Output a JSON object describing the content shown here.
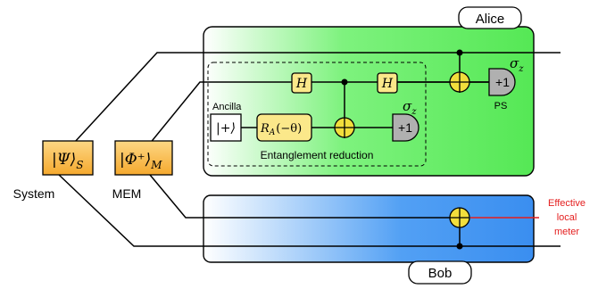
{
  "labels": {
    "alice": "Alice",
    "bob": "Bob",
    "system_state": "|Ψ⟩",
    "system_state_sub": "S",
    "system": "System",
    "mem_state": "|Φ⁺⟩",
    "mem_state_sub": "M",
    "mem": "MEM",
    "ancilla": "Ancilla",
    "ancilla_state": "|+⟩",
    "rotation_gate": "R",
    "rotation_gate_sub": "A",
    "rotation_gate_arg": "(−θ)",
    "hadamard_1": "H",
    "hadamard_2": "H",
    "measure_er": "+1",
    "measure_ps": "+1",
    "sigma_z_er": "σ",
    "sigma_z_er_sub": "z",
    "sigma_z_ps": "σ",
    "sigma_z_ps_sub": "z",
    "ps": "PS",
    "entanglement_reduction": "Entanglement reduction",
    "effective_line1": "Effective",
    "effective_line2": "local",
    "effective_line3": "meter"
  },
  "colors": {
    "alice_panel": "#55e855",
    "bob_panel": "#3a8ef0",
    "state_box": "#f7b43a",
    "gate_fill": "#fbe88a",
    "oplus_fill": "#f2de3c",
    "meter_fill": "#b0b0b0",
    "effective_text": "#e41e1e"
  }
}
